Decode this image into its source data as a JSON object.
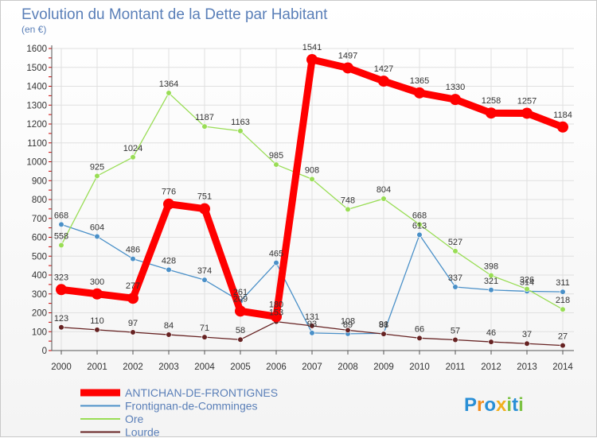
{
  "chart_data": {
    "type": "line",
    "title": "Evolution du Montant de la Dette par Habitant",
    "unit_label": "(en €)",
    "x": [
      2000,
      2001,
      2002,
      2003,
      2004,
      2005,
      2006,
      2007,
      2008,
      2009,
      2010,
      2011,
      2012,
      2013,
      2014
    ],
    "x_labels": [
      "2000",
      "2001",
      "2002",
      "2003",
      "2004",
      "2005",
      "2006",
      "2007",
      "2008",
      "2009",
      "2010",
      "2011",
      "2012",
      "2013",
      "2014"
    ],
    "ylim": [
      0,
      1600
    ],
    "y_ticks": [
      0,
      100,
      200,
      300,
      400,
      500,
      600,
      700,
      800,
      900,
      1000,
      1100,
      1200,
      1300,
      1400,
      1500,
      1600
    ],
    "y_tick_labels": [
      "0",
      "100",
      "200",
      "300",
      "400",
      "500",
      "600",
      "700",
      "800",
      "900",
      "1000",
      "1100",
      "1200",
      "1300",
      "1400",
      "1500",
      "1600"
    ],
    "grid": true,
    "legend_position": "bottom-left",
    "series": [
      {
        "name": "ANTICHAN-DE-FRONTIGNES",
        "color": "#ff0000",
        "emphasis": true,
        "values": [
          323,
          300,
          277,
          776,
          751,
          209,
          180,
          1541,
          1497,
          1427,
          1365,
          1330,
          1258,
          1257,
          1184
        ],
        "labels": [
          "323",
          "300",
          "277",
          "776",
          "751",
          "209",
          "180",
          "1541",
          "1497",
          "1427",
          "1365",
          "1330",
          "1258",
          "1257",
          "1184"
        ]
      },
      {
        "name": "Frontignan-de-Comminges",
        "color": "#4a90c8",
        "emphasis": false,
        "values": [
          668,
          604,
          486,
          428,
          374,
          261,
          465,
          93,
          89,
          91,
          613,
          337,
          321,
          314,
          311
        ],
        "labels": [
          "668",
          "604",
          "486",
          "428",
          "374",
          "261",
          "465",
          "93",
          "89",
          "91",
          "613",
          "337",
          "321",
          "314",
          "311"
        ]
      },
      {
        "name": "Ore",
        "color": "#99dd55",
        "emphasis": false,
        "values": [
          558,
          925,
          1024,
          1364,
          1187,
          1163,
          985,
          908,
          748,
          804,
          668,
          527,
          398,
          326,
          218
        ],
        "labels": [
          "558",
          "925",
          "1024",
          "1364",
          "1187",
          "1163",
          "985",
          "908",
          "748",
          "804",
          "668",
          "527",
          "398",
          "326",
          "218"
        ]
      },
      {
        "name": "Lourde",
        "color": "#662222",
        "emphasis": false,
        "values": [
          123,
          110,
          97,
          84,
          71,
          58,
          153,
          131,
          108,
          88,
          66,
          57,
          46,
          37,
          27
        ],
        "labels": [
          "123",
          "110",
          "97",
          "84",
          "71",
          "58",
          "153",
          "131",
          "108",
          "88",
          "66",
          "57",
          "46",
          "37",
          "27"
        ]
      }
    ]
  },
  "legend": {
    "items": [
      {
        "label": "ANTICHAN-DE-FRONTIGNES",
        "color": "#ff0000"
      },
      {
        "label": "Frontignan-de-Comminges",
        "color": "#4a90c8"
      },
      {
        "label": "Ore",
        "color": "#99dd55"
      },
      {
        "label": "Lourde",
        "color": "#662222"
      }
    ]
  },
  "logo": {
    "name": "Proxiti",
    "letters": [
      "P",
      "r",
      "o",
      "x",
      "i",
      "t",
      "i"
    ],
    "colors": [
      "#2a8fd6",
      "#f28c1e",
      "#2a8fd6",
      "#f2b01e",
      "#7cc242",
      "#2a8fd6",
      "#7cc242"
    ]
  }
}
